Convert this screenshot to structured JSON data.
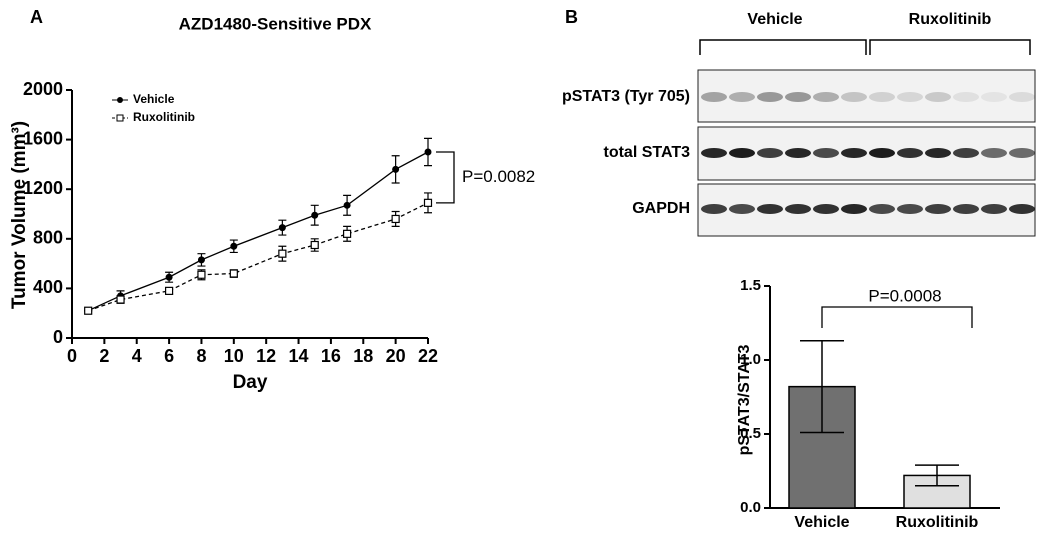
{
  "chart_data": [
    {
      "type": "line",
      "panel_label": "A",
      "title": "AZD1480-Sensitive PDX",
      "xlabel": "Day",
      "ylabel": "Tumor Volume (mm³)",
      "x": [
        1,
        3,
        6,
        8,
        10,
        13,
        15,
        17,
        20,
        22
      ],
      "series": [
        {
          "name": "Vehicle",
          "color": "#000000",
          "line_style": "solid",
          "marker": "filled-circle",
          "values": [
            220,
            340,
            490,
            630,
            740,
            890,
            990,
            1070,
            1360,
            1500
          ],
          "errors": [
            0,
            40,
            40,
            50,
            50,
            60,
            80,
            80,
            110,
            110
          ]
        },
        {
          "name": "Ruxolitinib",
          "color": "#000000",
          "line_style": "dashed",
          "marker": "open-square",
          "values": [
            220,
            310,
            380,
            510,
            520,
            680,
            750,
            840,
            960,
            1090
          ],
          "errors": [
            0,
            30,
            25,
            40,
            30,
            60,
            50,
            60,
            60,
            80
          ]
        }
      ],
      "xlim": [
        0,
        22
      ],
      "xticks": [
        0,
        2,
        4,
        6,
        8,
        10,
        12,
        14,
        16,
        18,
        20,
        22
      ],
      "ylim": [
        0,
        2000
      ],
      "yticks": [
        0,
        400,
        800,
        1200,
        1600,
        2000
      ],
      "legend": "upper-left",
      "annotation": "P=0.0082"
    },
    {
      "type": "bar",
      "ylabel": "pSTAT3/STAT3",
      "categories": [
        "Vehicle",
        "Ruxolitinib"
      ],
      "values": [
        0.82,
        0.22
      ],
      "errors": [
        0.31,
        0.07
      ],
      "colors": [
        "#707070",
        "#e0e0e0"
      ],
      "ylim": [
        0,
        1.5
      ],
      "yticks": [
        {
          "value": 0,
          "label": "0.0"
        },
        {
          "value": 0.5,
          "label": "0.5"
        },
        {
          "value": 1,
          "label": "1.0"
        },
        {
          "value": 1.5,
          "label": "1.5"
        }
      ],
      "annotation": "P=0.0008"
    }
  ],
  "blot": {
    "panel_label": "B",
    "groups": [
      "Vehicle",
      "Ruxolitinib"
    ],
    "rows": [
      "pSTAT3 (Tyr 705)",
      "total STAT3",
      "GAPDH"
    ]
  }
}
